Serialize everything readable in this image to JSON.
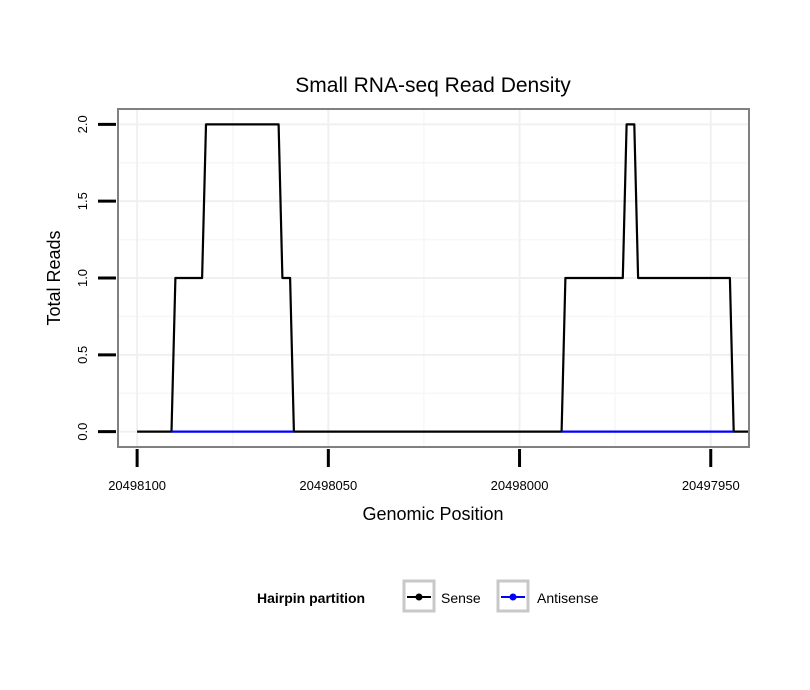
{
  "chart_data": {
    "type": "line",
    "title": "Small RNA-seq Read Density",
    "xlabel": "Genomic Position",
    "ylabel": "Total Reads",
    "xlim": [
      20498105,
      20497940
    ],
    "ylim": [
      -0.1,
      2.1
    ],
    "x_reversed": true,
    "grid": true,
    "x_ticks": [
      20498100,
      20498050,
      20498000,
      20497950
    ],
    "x_tick_labels": [
      "20498100",
      "20498050",
      "20498000",
      "20497950"
    ],
    "y_ticks": [
      0,
      0.5,
      1,
      1.5,
      2
    ],
    "y_tick_labels": [
      "0.0",
      "0.5",
      "1.0",
      "1.5",
      "2.0"
    ],
    "legend": {
      "title": "Hairpin partition",
      "position": "bottom",
      "entries": [
        "Sense",
        "Antisense"
      ]
    },
    "series": [
      {
        "name": "Sense",
        "color": "#000000",
        "points": [
          [
            20498100,
            0
          ],
          [
            20498091,
            0
          ],
          [
            20498090,
            1
          ],
          [
            20498083,
            1
          ],
          [
            20498082,
            2
          ],
          [
            20498063,
            2
          ],
          [
            20498062,
            1
          ],
          [
            20498060,
            1
          ],
          [
            20498059,
            0
          ],
          [
            20497989,
            0
          ],
          [
            20497988,
            1
          ],
          [
            20497973,
            1
          ],
          [
            20497972,
            2
          ],
          [
            20497970,
            2
          ],
          [
            20497969,
            1
          ],
          [
            20497945,
            1
          ],
          [
            20497944,
            0
          ],
          [
            20497940,
            0
          ]
        ]
      },
      {
        "name": "Antisense",
        "color": "#0000ff",
        "points": [
          [
            20498091,
            0
          ],
          [
            20498059,
            0
          ]
        ],
        "points_2": [
          [
            20497989,
            0
          ],
          [
            20497944,
            0
          ]
        ]
      }
    ]
  }
}
